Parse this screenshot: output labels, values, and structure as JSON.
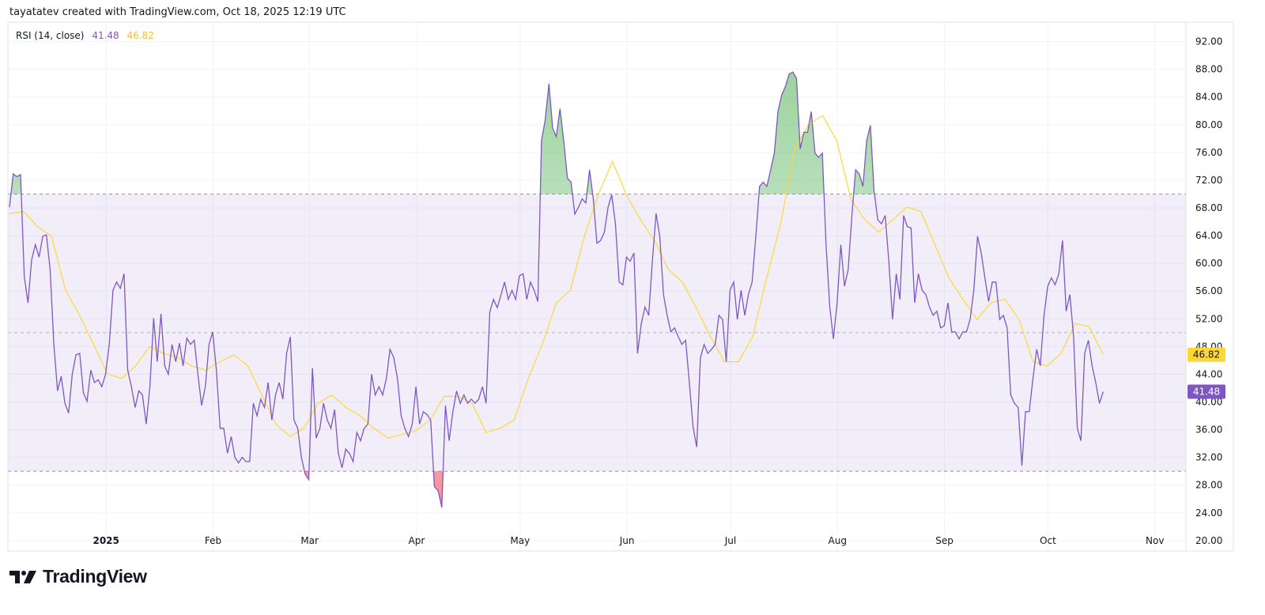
{
  "header": {
    "attribution": "tayatatev created with TradingView.com, Oct 18, 2025 12:19 UTC"
  },
  "legend": {
    "indicator": "RSI (14, close)",
    "rsi_value": "41.48",
    "ma_value": "46.82"
  },
  "logo": {
    "text": "TradingView",
    "icon": "tradingview-logo-icon"
  },
  "colors": {
    "rsi": "#7e57c2",
    "ma": "#fdd835",
    "band": "#7e57c2",
    "overbought_fill": "#4caf50",
    "oversold_fill": "#f23645",
    "grid": "#f0f3fa"
  },
  "chart_data": {
    "type": "line",
    "title": "RSI (14, close)",
    "x_range": [
      "2024-12-04",
      "2025-10-17"
    ],
    "x_axis_range": [
      "2024-12-04",
      "2025-11-10"
    ],
    "x_ticks": [
      {
        "label": "2025",
        "date": "2025-01-01",
        "bold": true
      },
      {
        "label": "Feb",
        "date": "2025-02-01"
      },
      {
        "label": "Mar",
        "date": "2025-03-01"
      },
      {
        "label": "Apr",
        "date": "2025-04-01"
      },
      {
        "label": "May",
        "date": "2025-05-01"
      },
      {
        "label": "Jun",
        "date": "2025-06-01"
      },
      {
        "label": "Jul",
        "date": "2025-07-01"
      },
      {
        "label": "Aug",
        "date": "2025-08-01"
      },
      {
        "label": "Sep",
        "date": "2025-09-01"
      },
      {
        "label": "Oct",
        "date": "2025-10-01"
      },
      {
        "label": "Nov",
        "date": "2025-11-01"
      }
    ],
    "y_ticks": [
      "20.00",
      "24.00",
      "28.00",
      "32.00",
      "36.00",
      "40.00",
      "44.00",
      "48.00",
      "52.00",
      "56.00",
      "60.00",
      "64.00",
      "68.00",
      "72.00",
      "76.00",
      "80.00",
      "84.00",
      "88.00",
      "92.00"
    ],
    "ylim": [
      18.5,
      94.8
    ],
    "grid": true,
    "levels": {
      "upper": 70,
      "middle": 50,
      "lower": 30
    },
    "last_labels": {
      "rsi": "41.48",
      "ma": "46.82"
    },
    "series": [
      {
        "name": "RSI",
        "color": "#7e57c2",
        "values": [
          68.1,
          72.9,
          72.5,
          72.8,
          58.1,
          54.3,
          60.5,
          62.7,
          60.9,
          63.9,
          64.1,
          59.1,
          48.3,
          41.6,
          43.7,
          39.8,
          38.4,
          44.0,
          46.8,
          47.0,
          41.3,
          40.1,
          44.6,
          42.8,
          43.2,
          42.2,
          44.0,
          48.3,
          56.1,
          57.3,
          56.4,
          58.5,
          44.6,
          42.2,
          39.2,
          41.6,
          41.0,
          36.8,
          42.2,
          52.1,
          45.8,
          52.7,
          45.2,
          44.0,
          48.3,
          45.8,
          48.5,
          45.2,
          49.2,
          48.3,
          48.9,
          44.0,
          39.5,
          42.2,
          48.3,
          50.1,
          44.6,
          36.2,
          36.2,
          32.6,
          35.0,
          32.0,
          31.2,
          32.0,
          31.4,
          31.4,
          39.8,
          38.0,
          40.4,
          39.2,
          42.8,
          37.4,
          41.0,
          42.8,
          40.4,
          47.0,
          49.4,
          37.4,
          36.2,
          32.0,
          29.6,
          28.8,
          44.9,
          34.8,
          36.2,
          39.8,
          37.4,
          36.2,
          38.9,
          32.6,
          30.5,
          33.2,
          32.6,
          31.4,
          35.6,
          34.4,
          36.2,
          36.8,
          44.0,
          41.0,
          42.2,
          41.0,
          43.4,
          47.6,
          46.4,
          43.4,
          38.0,
          36.2,
          35.0,
          36.8,
          42.2,
          36.8,
          38.6,
          38.2,
          37.4,
          27.8,
          27.2,
          24.8,
          39.5,
          34.4,
          38.6,
          41.6,
          39.8,
          41.0,
          39.8,
          40.4,
          39.8,
          40.4,
          42.2,
          39.8,
          53.0,
          54.8,
          53.6,
          55.4,
          57.3,
          54.8,
          56.1,
          54.8,
          58.2,
          58.5,
          54.8,
          57.3,
          56.1,
          54.5,
          77.7,
          80.7,
          85.9,
          79.5,
          78.3,
          82.3,
          77.7,
          72.3,
          71.7,
          67.1,
          68.1,
          69.3,
          68.7,
          73.5,
          69.3,
          62.9,
          63.3,
          64.5,
          68.1,
          69.9,
          65.7,
          57.3,
          56.9,
          60.9,
          60.3,
          61.5,
          47.0,
          51.3,
          53.7,
          52.5,
          60.3,
          67.2,
          63.9,
          55.5,
          52.5,
          50.1,
          50.7,
          49.4,
          48.3,
          48.9,
          42.8,
          36.5,
          33.5,
          46.4,
          48.3,
          47.0,
          47.6,
          48.3,
          52.5,
          51.9,
          45.8,
          56.1,
          57.3,
          51.9,
          56.1,
          52.5,
          55.5,
          57.3,
          63.9,
          71.1,
          71.7,
          71.1,
          73.5,
          75.9,
          81.9,
          84.3,
          85.5,
          87.3,
          87.6,
          86.7,
          76.5,
          78.9,
          78.9,
          81.9,
          75.9,
          75.3,
          75.9,
          62.7,
          53.7,
          49.1,
          54.3,
          62.7,
          56.7,
          59.1,
          66.9,
          73.5,
          72.9,
          71.1,
          77.7,
          79.9,
          70.5,
          66.3,
          65.7,
          66.9,
          60.3,
          51.9,
          58.5,
          54.8,
          66.9,
          65.3,
          65.1,
          54.3,
          58.5,
          56.1,
          55.5,
          53.7,
          52.5,
          53.1,
          50.7,
          51.0,
          54.3,
          50.1,
          50.1,
          49.1,
          50.1,
          50.1,
          51.9,
          56.1,
          63.9,
          61.5,
          57.9,
          54.5,
          57.3,
          57.3,
          51.9,
          52.5,
          50.7,
          41.0,
          39.8,
          39.2,
          30.8,
          38.6,
          38.6,
          43.4,
          47.6,
          45.2,
          52.5,
          56.7,
          57.9,
          56.9,
          58.5,
          63.3,
          53.1,
          55.5,
          49.4,
          36.2,
          34.4,
          47.0,
          48.9,
          45.2,
          42.8,
          39.8,
          41.48
        ]
      },
      {
        "color": "#fdd835",
        "values": [
          67.2,
          67.5,
          65.3,
          63.9,
          56.1,
          52.5,
          48.3,
          44.0,
          43.4,
          45.2,
          48.0,
          47.0,
          46.4,
          45.2,
          44.6,
          45.8,
          46.8,
          45.2,
          41.0,
          36.8,
          35.0,
          36.2,
          39.8,
          41.0,
          39.2,
          38.0,
          36.2,
          34.8,
          35.3,
          35.9,
          37.4,
          40.8,
          40.8,
          39.8,
          35.6,
          36.2,
          37.4,
          43.4,
          48.3,
          54.3,
          56.1,
          63.9,
          69.9,
          74.7,
          69.9,
          66.3,
          63.3,
          59.1,
          57.3,
          53.5,
          49.4,
          45.8,
          45.8,
          49.4,
          57.9,
          65.7,
          76.5,
          80.1,
          81.3,
          77.7,
          69.3,
          66.3,
          64.5,
          66.3,
          68.1,
          67.5,
          62.7,
          57.9,
          54.8,
          51.9,
          54.3,
          54.8,
          51.9,
          45.8,
          45.2,
          47.0,
          51.3,
          50.9,
          46.82
        ]
      }
    ]
  }
}
